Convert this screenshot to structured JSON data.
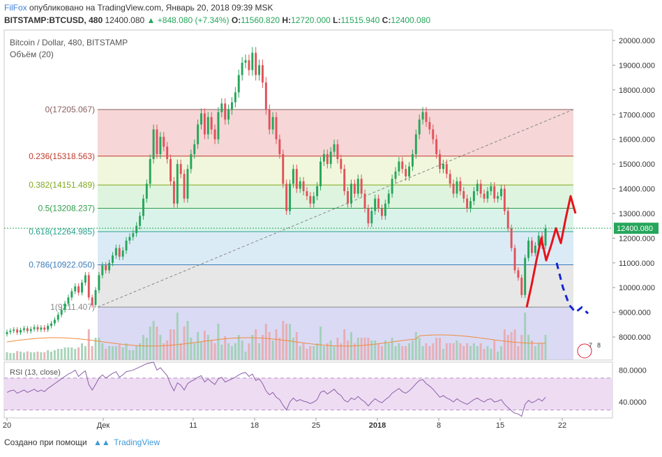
{
  "header": {
    "user": "FilFox",
    "published_text": "опубликовано на TradingView.com, Январь 20, 2018 09:39 MSK",
    "symbol": "BITSTAMP:BTCUSD, 480",
    "last": "12400.080",
    "change": "+848.080 (+7.34%)",
    "o_label": "O:",
    "o": "11560.820",
    "h_label": "H:",
    "h": "12720.000",
    "l_label": "L:",
    "l": "11515.940",
    "c_label": "C:",
    "c": "12400.080"
  },
  "footer": {
    "created_with": "Создано при помощи",
    "brand": "TradingView"
  },
  "colors": {
    "up": "#26a65b",
    "down": "#e0525a",
    "volume_up": "#9ccfb0",
    "volume_down": "#e9a9ad",
    "rsi": "#8b5fa8",
    "annotation_red": "#e8121b",
    "annotation_blue": "#1525d0"
  },
  "chart_data": {
    "type": "candlestick",
    "title": "Bitcoin / Dollar, 480, BITSTAMP",
    "volume_label": "Объём (20)",
    "y_axis": {
      "range": [
        7500,
        20500
      ],
      "ticks": [
        "20000.000",
        "19000.000",
        "18000.000",
        "17000.000",
        "16000.000",
        "15000.000",
        "14000.000",
        "13000.000",
        "12000.000",
        "11000.000",
        "10000.000",
        "9000.000",
        "8000.000"
      ],
      "last_price_label": "12400.080"
    },
    "x_axis": {
      "ticks": [
        "20",
        "Дек",
        "11",
        "18",
        "25",
        "2018",
        "8",
        "15",
        "22"
      ]
    },
    "fibonacci": [
      {
        "label": "0(17205.067)",
        "price": 17205.067,
        "color": "#8b5e5e"
      },
      {
        "label": "0.236(15318.563)",
        "price": 15318.563,
        "color": "#c0392b"
      },
      {
        "label": "0.382(14151.489)",
        "price": 14151.489,
        "color": "#7fa81c"
      },
      {
        "label": "0.5(13208.237)",
        "price": 13208.237,
        "color": "#2e9e48"
      },
      {
        "label": "0.618(12264.985)",
        "price": 12264.985,
        "color": "#2aa08f"
      },
      {
        "label": "0.786(10922.050)",
        "price": 10922.05,
        "color": "#3b7bb8"
      },
      {
        "label": "1(9211.407)",
        "price": 9211.407,
        "color": "#888888"
      }
    ],
    "fib_zone_colors": [
      "#f5cfcf",
      "#eef6d6",
      "#d8f2d8",
      "#d4f1e6",
      "#d5e7f5",
      "#e3e3e3",
      "#d4d4f3"
    ],
    "candle_closes": [
      8200,
      8250,
      8300,
      8180,
      8280,
      8350,
      8240,
      8320,
      8400,
      8300,
      8380,
      8300,
      8450,
      8550,
      8700,
      8900,
      9100,
      9350,
      9600,
      9850,
      10050,
      9800,
      10200,
      10500,
      9600,
      9300,
      9900,
      10500,
      10900,
      10700,
      11000,
      11300,
      11600,
      11250,
      11500,
      11900,
      12050,
      12200,
      12500,
      12900,
      13600,
      14200,
      15200,
      16400,
      15400,
      16100,
      15700,
      15200,
      14300,
      13400,
      15000,
      14600,
      13600,
      14800,
      15400,
      15800,
      16600,
      17050,
      16200,
      16900,
      16400,
      16000,
      17100,
      17450,
      16800,
      17200,
      17500,
      17900,
      18600,
      19100,
      19200,
      18800,
      19500,
      18600,
      19000,
      18300,
      17200,
      16400,
      16900,
      16000,
      15400,
      14200,
      13100,
      14200,
      14800,
      14000,
      14300,
      13900,
      13700,
      13400,
      13700,
      14100,
      15100,
      15400,
      15000,
      15500,
      15800,
      15200,
      14800,
      13900,
      13400,
      14200,
      13800,
      14400,
      13800,
      13200,
      12600,
      13100,
      13600,
      13200,
      12900,
      13400,
      13800,
      14400,
      14700,
      15100,
      14800,
      14500,
      14900,
      15400,
      16200,
      16800,
      17100,
      16700,
      16400,
      16000,
      15400,
      14800,
      15000,
      14600,
      14200,
      13800,
      14300,
      13900,
      13600,
      13200,
      13500,
      13900,
      14200,
      13800,
      13600,
      13900,
      14100,
      13600,
      13700,
      14000,
      13100,
      12400,
      11600,
      10700,
      10400,
      9700,
      11200,
      11900,
      11400,
      11700,
      12100,
      11700,
      12400
    ],
    "rsi": {
      "label": "RSI (13, close)",
      "ticks": [
        "80.0000",
        "40.0000"
      ],
      "range": [
        20,
        90
      ],
      "upper_band": 70,
      "lower_band": 30,
      "values": [
        52,
        54,
        55,
        51,
        53,
        55,
        52,
        54,
        56,
        53,
        55,
        53,
        57,
        60,
        63,
        66,
        69,
        72,
        75,
        77,
        80,
        72,
        76,
        79,
        62,
        55,
        62,
        70,
        74,
        70,
        73,
        76,
        78,
        71,
        74,
        78,
        79,
        80,
        82,
        84,
        86,
        88,
        89,
        90,
        80,
        83,
        78,
        73,
        62,
        54,
        64,
        61,
        55,
        63,
        66,
        68,
        71,
        73,
        65,
        69,
        65,
        62,
        69,
        71,
        65,
        67,
        69,
        71,
        74,
        76,
        77,
        72,
        75,
        67,
        69,
        63,
        54,
        49,
        52,
        46,
        43,
        36,
        30,
        40,
        45,
        41,
        43,
        41,
        40,
        38,
        40,
        43,
        52,
        54,
        50,
        53,
        56,
        51,
        48,
        42,
        40,
        45,
        43,
        47,
        43,
        40,
        35,
        40,
        44,
        41,
        39,
        43,
        46,
        51,
        54,
        57,
        53,
        51,
        54,
        58,
        63,
        67,
        68,
        63,
        60,
        56,
        51,
        46,
        48,
        45,
        43,
        40,
        44,
        41,
        39,
        37,
        40,
        43,
        45,
        42,
        40,
        43,
        44,
        40,
        41,
        43,
        37,
        33,
        29,
        26,
        25,
        22,
        37,
        42,
        39,
        41,
        44,
        41,
        46
      ]
    },
    "annotations": {
      "red_path_prices": [
        9200,
        10100,
        11100,
        12000,
        11100,
        11700,
        12400,
        11800,
        12800,
        13700,
        13000
      ],
      "blue_path_prices": [
        11000,
        10000,
        9300,
        9000,
        9200,
        8950
      ]
    }
  }
}
